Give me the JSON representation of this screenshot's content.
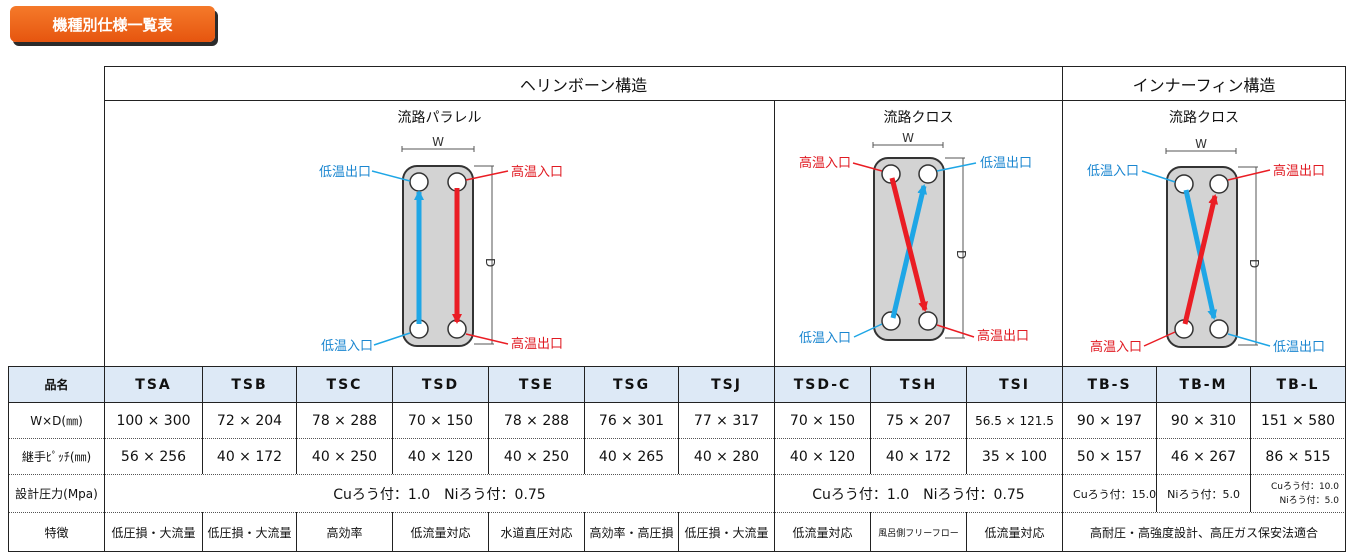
{
  "title_button": "機種別仕様一覧表",
  "groups": {
    "herringbone": "ヘリンボーン構造",
    "innerfin": "インナーフィン構造"
  },
  "flow_types": {
    "parallel": "流路パラレル",
    "cross1": "流路クロス",
    "cross2": "流路クロス"
  },
  "diagram_labels": {
    "W": "W",
    "D": "D",
    "low_out": "低温出口",
    "high_in": "高温入口",
    "low_in": "低温入口",
    "high_out": "高温出口"
  },
  "colors": {
    "title_orange": "#f0661c",
    "header_bg": "#dde9f6",
    "blue_arrow": "#1ea6e6",
    "red_arrow": "#ea1d24",
    "plate": "#d3d3d3"
  },
  "row_labels": {
    "name": "品名",
    "size": "W×D(㎜)",
    "pitch": "継手ﾋﾟｯﾁ(㎜)",
    "pressure": "設計圧力(Mpa)",
    "feature": "特徴"
  },
  "models": [
    "TSA",
    "TSB",
    "TSC",
    "TSD",
    "TSE",
    "TSG",
    "TSJ",
    "TSD-C",
    "TSH",
    "TSI",
    "TB-S",
    "TB-M",
    "TB-L"
  ],
  "sizes": [
    "100 × 300",
    "72 × 204",
    "78 × 288",
    "70 × 150",
    "78 × 288",
    "76 × 301",
    "77 × 317",
    "70 × 150",
    "75 × 207",
    "56.5 × 121.5",
    "90 × 197",
    "90 × 310",
    "151 × 580"
  ],
  "pitches": [
    "56 × 256",
    "40 × 172",
    "40 × 250",
    "40 × 120",
    "40 × 250",
    "40 × 265",
    "40 × 280",
    "40 × 120",
    "40 × 172",
    "35 × 100",
    "50 × 157",
    "46 × 267",
    "86 × 515"
  ],
  "pressures": {
    "herringbone_parallel": "Cuろう付：1.0　Niろう付：0.75",
    "herringbone_cross": "Cuろう付：1.0　Niろう付：0.75",
    "innerfin_ab": "Cuろう付：15.0　Niろう付：5.0",
    "innerfin_l_cu": "Cuろう付：10.0",
    "innerfin_l_ni": "Niろう付：5.0"
  },
  "features": [
    "低圧損・大流量",
    "低圧損・大流量",
    "高効率",
    "低流量対応",
    "水道直圧対応",
    "高効率・高圧損",
    "低圧損・大流量",
    "低流量対応",
    "風呂側フリーフロー",
    "低流量対応"
  ],
  "feature_innerfin": "高耐圧・高強度設計、高圧ガス保安法適合"
}
